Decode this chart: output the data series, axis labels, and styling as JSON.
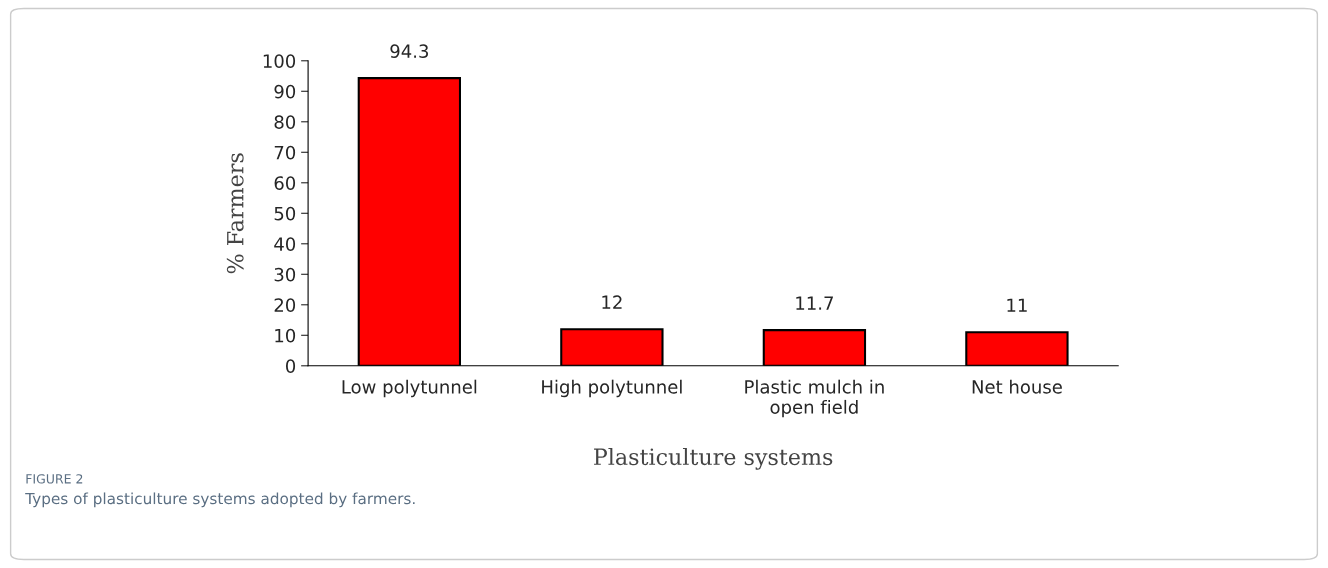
{
  "chart_data": {
    "type": "bar",
    "xlabel": "Plasticulture systems",
    "ylabel": "% Farmers",
    "categories": [
      "Low polytunnel",
      "High polytunnel",
      "Plastic mulch in\nopen field",
      "Net house"
    ],
    "values": [
      94.3,
      12,
      11.7,
      11
    ],
    "color": "#ff0000",
    "ylim": [
      0,
      100
    ],
    "yticks": [
      0,
      10,
      20,
      30,
      40,
      50,
      60,
      70,
      80,
      90,
      100
    ],
    "data_labels": true,
    "grid": false,
    "legend": false,
    "annotations": [
      "FIGURE 2",
      "Types of plasticulture systems adopted by farmers."
    ]
  }
}
